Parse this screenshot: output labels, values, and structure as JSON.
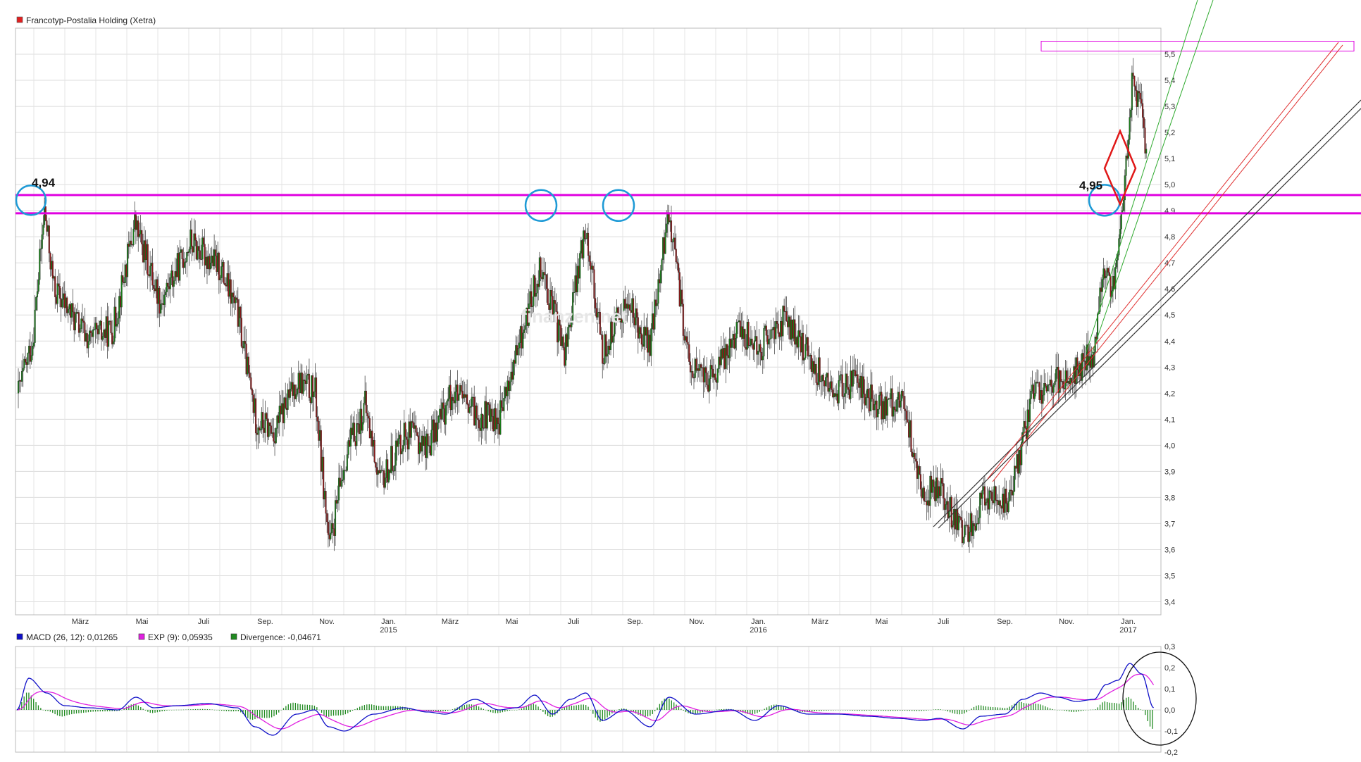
{
  "chart_data": [
    {
      "type": "candlestick",
      "title": "Francotyp-Postalia Holding (Xetra)",
      "legend_color": "#e02020",
      "ylim": [
        3.35,
        5.6
      ],
      "y_ticks": [
        3.4,
        3.5,
        3.6,
        3.7,
        3.8,
        3.9,
        4.0,
        4.1,
        4.2,
        4.3,
        4.4,
        4.5,
        4.6,
        4.7,
        4.8,
        4.9,
        5.0,
        5.1,
        5.2,
        5.3,
        5.4,
        5.5
      ],
      "y_tick_labels": [
        "3,4",
        "3,5",
        "3,6",
        "3,7",
        "3,8",
        "3,9",
        "4,0",
        "4,1",
        "4,2",
        "4,3",
        "4,4",
        "4,5",
        "4,6",
        "4,7",
        "4,8",
        "4,9",
        "5,0",
        "5,1",
        "5,2",
        "5,3",
        "5,4",
        "5,5"
      ],
      "x_tick_labels": [
        {
          "label": "März",
          "year": ""
        },
        {
          "label": "Mai",
          "year": ""
        },
        {
          "label": "Juli",
          "year": ""
        },
        {
          "label": "Sep.",
          "year": ""
        },
        {
          "label": "Nov.",
          "year": ""
        },
        {
          "label": "Jan.",
          "year": "2015"
        },
        {
          "label": "März",
          "year": ""
        },
        {
          "label": "Mai",
          "year": ""
        },
        {
          "label": "Juli",
          "year": ""
        },
        {
          "label": "Sep.",
          "year": ""
        },
        {
          "label": "Nov.",
          "year": ""
        },
        {
          "label": "Jan.",
          "year": "2016"
        },
        {
          "label": "März",
          "year": ""
        },
        {
          "label": "Mai",
          "year": ""
        },
        {
          "label": "Juli",
          "year": ""
        },
        {
          "label": "Sep.",
          "year": ""
        },
        {
          "label": "Nov.",
          "year": ""
        },
        {
          "label": "Jan.",
          "year": "2017"
        }
      ],
      "anchors": [
        [
          0,
          4.2
        ],
        [
          12,
          4.4
        ],
        [
          22,
          4.9
        ],
        [
          30,
          4.6
        ],
        [
          45,
          4.5
        ],
        [
          60,
          4.4
        ],
        [
          80,
          4.45
        ],
        [
          98,
          4.85
        ],
        [
          120,
          4.55
        ],
        [
          145,
          4.78
        ],
        [
          170,
          4.68
        ],
        [
          185,
          4.5
        ],
        [
          200,
          4.1
        ],
        [
          215,
          4.05
        ],
        [
          235,
          4.25
        ],
        [
          250,
          4.2
        ],
        [
          262,
          3.6
        ],
        [
          275,
          3.95
        ],
        [
          292,
          4.15
        ],
        [
          305,
          3.85
        ],
        [
          325,
          4.05
        ],
        [
          345,
          4.0
        ],
        [
          365,
          4.2
        ],
        [
          385,
          4.12
        ],
        [
          405,
          4.1
        ],
        [
          420,
          4.35
        ],
        [
          440,
          4.7
        ],
        [
          460,
          4.35
        ],
        [
          478,
          4.85
        ],
        [
          492,
          4.35
        ],
        [
          512,
          4.55
        ],
        [
          532,
          4.38
        ],
        [
          548,
          4.9
        ],
        [
          565,
          4.3
        ],
        [
          585,
          4.25
        ],
        [
          605,
          4.45
        ],
        [
          625,
          4.38
        ],
        [
          645,
          4.48
        ],
        [
          665,
          4.35
        ],
        [
          685,
          4.2
        ],
        [
          705,
          4.25
        ],
        [
          725,
          4.15
        ],
        [
          745,
          4.18
        ],
        [
          762,
          3.8
        ],
        [
          775,
          3.85
        ],
        [
          795,
          3.65
        ],
        [
          815,
          3.8
        ],
        [
          835,
          3.78
        ],
        [
          855,
          4.2
        ],
        [
          875,
          4.25
        ],
        [
          890,
          4.28
        ],
        [
          905,
          4.35
        ],
        [
          915,
          4.7
        ],
        [
          922,
          4.6
        ],
        [
          930,
          4.9
        ],
        [
          938,
          5.4
        ],
        [
          945,
          5.3
        ],
        [
          950,
          5.1
        ]
      ],
      "annotations": [
        {
          "label": "4,94",
          "value": 4.94
        },
        {
          "label": "4,95",
          "value": 4.95
        }
      ]
    },
    {
      "type": "line",
      "title": "MACD",
      "ylim": [
        -0.2,
        0.3
      ],
      "y_ticks": [
        -0.2,
        -0.1,
        0.0,
        0.1,
        0.2,
        0.3
      ],
      "y_tick_labels": [
        "-0,2",
        "-0,1",
        "0,0",
        "0,1",
        "0,2",
        "0,3"
      ],
      "series": [
        {
          "name": "MACD (26, 12): 0,01265",
          "color": "#1010c8"
        },
        {
          "name": "EXP (9): 0,05935",
          "color": "#e020e0"
        },
        {
          "name": "Divergence: -0,04671",
          "color": "#208a20"
        }
      ],
      "macd_anchors": [
        [
          0,
          0.0
        ],
        [
          10,
          0.15
        ],
        [
          25,
          0.08
        ],
        [
          40,
          0.02
        ],
        [
          60,
          0.01
        ],
        [
          85,
          0.0
        ],
        [
          100,
          0.06
        ],
        [
          115,
          0.01
        ],
        [
          135,
          0.02
        ],
        [
          160,
          0.03
        ],
        [
          185,
          0.01
        ],
        [
          200,
          -0.08
        ],
        [
          215,
          -0.12
        ],
        [
          235,
          -0.02
        ],
        [
          250,
          0.0
        ],
        [
          262,
          -0.08
        ],
        [
          275,
          -0.1
        ],
        [
          300,
          -0.02
        ],
        [
          325,
          0.01
        ],
        [
          345,
          -0.01
        ],
        [
          360,
          -0.02
        ],
        [
          385,
          0.05
        ],
        [
          405,
          0.0
        ],
        [
          420,
          0.01
        ],
        [
          435,
          0.07
        ],
        [
          450,
          -0.02
        ],
        [
          465,
          0.05
        ],
        [
          478,
          0.08
        ],
        [
          492,
          -0.05
        ],
        [
          510,
          0.0
        ],
        [
          532,
          -0.08
        ],
        [
          548,
          0.06
        ],
        [
          570,
          -0.02
        ],
        [
          600,
          0.0
        ],
        [
          620,
          -0.05
        ],
        [
          640,
          0.02
        ],
        [
          665,
          -0.02
        ],
        [
          690,
          -0.02
        ],
        [
          715,
          -0.03
        ],
        [
          740,
          -0.04
        ],
        [
          762,
          -0.05
        ],
        [
          775,
          -0.04
        ],
        [
          795,
          -0.09
        ],
        [
          810,
          -0.03
        ],
        [
          830,
          -0.02
        ],
        [
          845,
          0.05
        ],
        [
          860,
          0.08
        ],
        [
          875,
          0.06
        ],
        [
          890,
          0.04
        ],
        [
          905,
          0.05
        ],
        [
          915,
          0.12
        ],
        [
          925,
          0.14
        ],
        [
          935,
          0.22
        ],
        [
          945,
          0.17
        ],
        [
          955,
          0.01
        ]
      ]
    }
  ],
  "watermark": "finanzen.net"
}
